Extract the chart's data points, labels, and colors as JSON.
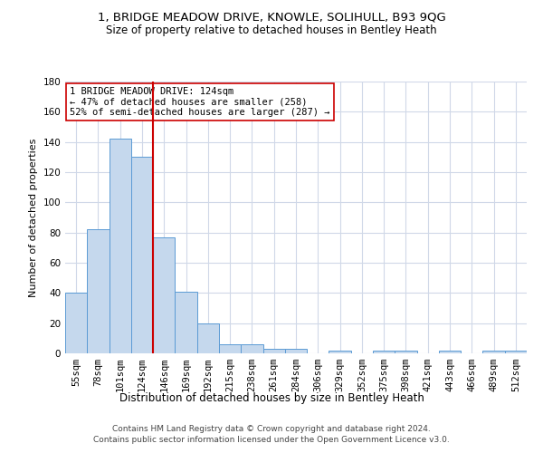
{
  "title": "1, BRIDGE MEADOW DRIVE, KNOWLE, SOLIHULL, B93 9QG",
  "subtitle": "Size of property relative to detached houses in Bentley Heath",
  "xlabel": "Distribution of detached houses by size in Bentley Heath",
  "ylabel": "Number of detached properties",
  "bar_color": "#c5d8ed",
  "bar_edge_color": "#5b9bd5",
  "categories": [
    "55sqm",
    "78sqm",
    "101sqm",
    "124sqm",
    "146sqm",
    "169sqm",
    "192sqm",
    "215sqm",
    "238sqm",
    "261sqm",
    "284sqm",
    "306sqm",
    "329sqm",
    "352sqm",
    "375sqm",
    "398sqm",
    "421sqm",
    "443sqm",
    "466sqm",
    "489sqm",
    "512sqm"
  ],
  "values": [
    40,
    82,
    142,
    130,
    77,
    41,
    20,
    6,
    6,
    3,
    3,
    0,
    2,
    0,
    2,
    2,
    0,
    2,
    0,
    2,
    2
  ],
  "ylim": [
    0,
    180
  ],
  "yticks": [
    0,
    20,
    40,
    60,
    80,
    100,
    120,
    140,
    160,
    180
  ],
  "vline_x_index": 3,
  "vline_color": "#cc0000",
  "annotation_text": "1 BRIDGE MEADOW DRIVE: 124sqm\n← 47% of detached houses are smaller (258)\n52% of semi-detached houses are larger (287) →",
  "annotation_box_color": "#ffffff",
  "annotation_box_edge": "#cc0000",
  "footer": "Contains HM Land Registry data © Crown copyright and database right 2024.\nContains public sector information licensed under the Open Government Licence v3.0.",
  "bg_color": "#ffffff",
  "grid_color": "#d0d8e8",
  "title_fontsize": 9.5,
  "subtitle_fontsize": 8.5,
  "xlabel_fontsize": 8.5,
  "ylabel_fontsize": 8,
  "tick_fontsize": 7.5,
  "annotation_fontsize": 7.5,
  "footer_fontsize": 6.5
}
